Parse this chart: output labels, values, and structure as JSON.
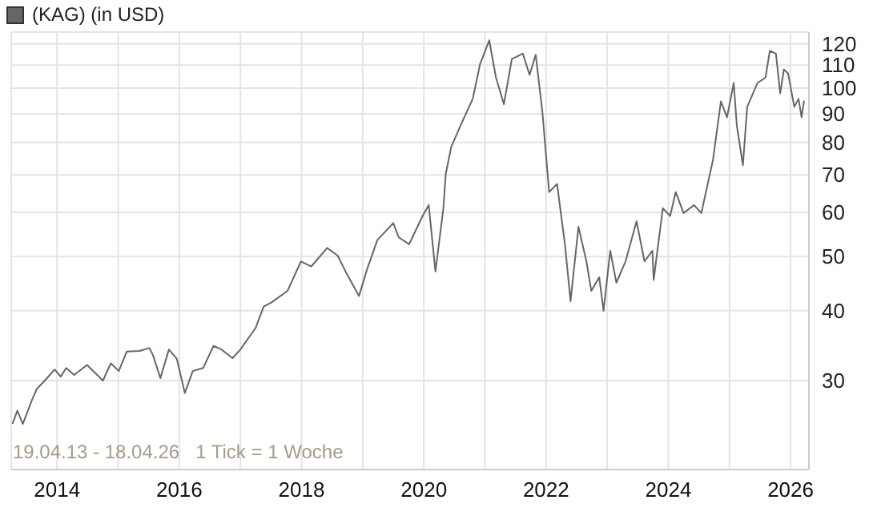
{
  "chart_data": {
    "type": "line",
    "legend": "top left",
    "grid": true,
    "log": "y",
    "annotations": [
      "19.04.13 - 18.04.26",
      "1 Tick = 1 Woche"
    ],
    "xlim": [
      2013.25,
      2026.3
    ],
    "xticks": [
      2014,
      {
        "value": 2015,
        "label": null
      },
      2016,
      {
        "value": 2017,
        "label": null
      },
      2018,
      {
        "value": 2019,
        "label": null
      },
      2020,
      {
        "value": 2021,
        "label": null
      },
      2022,
      {
        "value": 2023,
        "label": null
      },
      2024,
      {
        "value": 2025,
        "label": null
      },
      2026
    ],
    "ylim": [
      20.8,
      126
    ],
    "yticks": [
      30,
      40,
      50,
      60,
      70,
      80,
      90,
      100,
      110,
      120
    ],
    "series": [
      {
        "name": "(KAG) (in USD)",
        "color": "#666666",
        "x": [
          2013.27,
          2013.35,
          2013.44,
          2013.59,
          2013.67,
          2013.8,
          2013.96,
          2014.06,
          2014.15,
          2014.28,
          2014.49,
          2014.75,
          2014.88,
          2015.01,
          2015.14,
          2015.35,
          2015.51,
          2015.57,
          2015.69,
          2015.83,
          2015.96,
          2016.09,
          2016.22,
          2016.39,
          2016.56,
          2016.69,
          2016.87,
          2017.0,
          2017.25,
          2017.38,
          2017.51,
          2017.77,
          2017.99,
          2018.16,
          2018.42,
          2018.59,
          2018.72,
          2018.94,
          2019.07,
          2019.24,
          2019.5,
          2019.59,
          2019.76,
          2019.98,
          2020.08,
          2020.19,
          2020.32,
          2020.36,
          2020.45,
          2020.62,
          2020.8,
          2020.92,
          2021.07,
          2021.18,
          2021.31,
          2021.44,
          2021.62,
          2021.73,
          2021.83,
          2021.94,
          2022.05,
          2022.18,
          2022.31,
          2022.4,
          2022.53,
          2022.66,
          2022.74,
          2022.87,
          2022.94,
          2023.05,
          2023.15,
          2023.3,
          2023.48,
          2023.61,
          2023.74,
          2023.76,
          2023.91,
          2024.03,
          2024.12,
          2024.25,
          2024.42,
          2024.54,
          2024.73,
          2024.86,
          2024.96,
          2025.07,
          2025.12,
          2025.22,
          2025.29,
          2025.46,
          2025.59,
          2025.66,
          2025.76,
          2025.83,
          2025.89,
          2025.96,
          2026.06,
          2026.13,
          2026.18,
          2026.22
        ],
        "values": [
          25.1,
          26.5,
          25.1,
          27.7,
          29.0,
          30.0,
          31.4,
          30.5,
          31.6,
          30.7,
          32.0,
          30.0,
          32.2,
          31.2,
          33.8,
          33.9,
          34.3,
          33.3,
          30.3,
          34.1,
          32.8,
          28.5,
          31.2,
          31.6,
          34.6,
          34.1,
          32.9,
          34.1,
          37.3,
          40.7,
          41.4,
          43.4,
          49.0,
          48.0,
          51.8,
          50.2,
          47.0,
          42.5,
          47.4,
          53.5,
          57.4,
          54.1,
          52.6,
          59.1,
          61.8,
          47.0,
          61.0,
          70.4,
          78.6,
          86.7,
          95.7,
          110.4,
          121.8,
          104.5,
          93.6,
          112.8,
          115.3,
          105.6,
          114.8,
          90.6,
          65.2,
          67.4,
          52.4,
          41.6,
          56.5,
          49.0,
          43.4,
          45.9,
          40.0,
          51.2,
          44.9,
          49.0,
          57.8,
          49.0,
          51.2,
          45.4,
          61.0,
          59.1,
          65.2,
          59.8,
          61.8,
          59.8,
          74.4,
          94.7,
          88.7,
          102.2,
          85.8,
          72.8,
          92.6,
          102.2,
          104.5,
          116.6,
          115.3,
          97.9,
          108.0,
          106.2,
          92.6,
          95.7,
          88.7,
          95.0
        ]
      }
    ]
  }
}
